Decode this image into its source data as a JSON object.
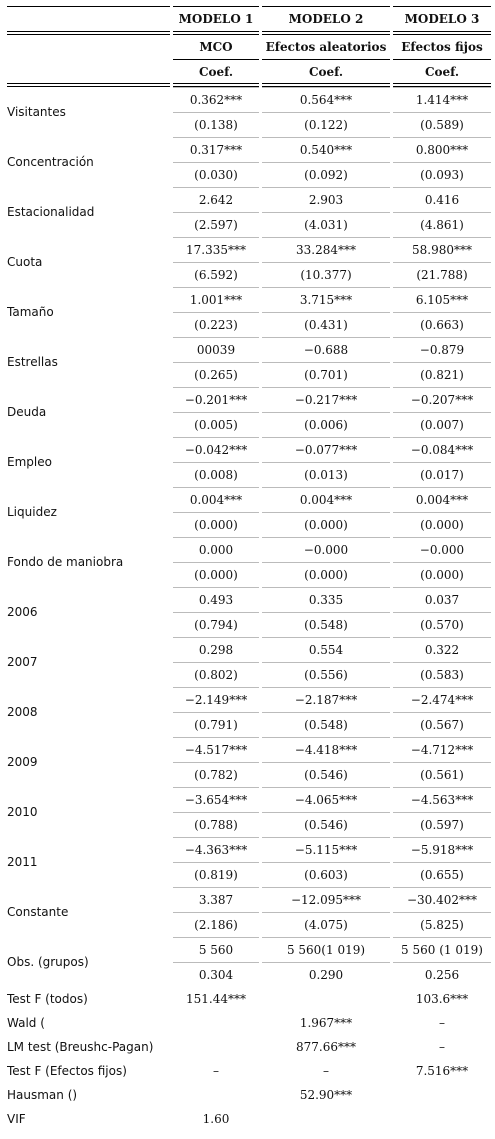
{
  "header": {
    "models": [
      "MODELO 1",
      "MODELO 2",
      "MODELO 3"
    ],
    "methods": [
      "MCO",
      "Efectos aleatorios",
      "Efectos fijos"
    ],
    "coef_labels": [
      "Coef.",
      "Coef.",
      "Coef."
    ]
  },
  "rows": [
    {
      "label": "Visitantes",
      "top": [
        "0.362***",
        "0.564***",
        "1.414***"
      ],
      "bottom": [
        "(0.138)",
        "(0.122)",
        "(0.589)"
      ]
    },
    {
      "label": "Concentración",
      "top": [
        "0.317***",
        "0.540***",
        "0.800***"
      ],
      "bottom": [
        "(0.030)",
        "(0.092)",
        "(0.093)"
      ]
    },
    {
      "label": "Estacionalidad",
      "top": [
        "2.642",
        "2.903",
        "0.416"
      ],
      "bottom": [
        "(2.597)",
        "(4.031)",
        "(4.861)"
      ]
    },
    {
      "label": "Cuota",
      "top": [
        "17.335***",
        "33.284***",
        "58.980***"
      ],
      "bottom": [
        "(6.592)",
        "(10.377)",
        "(21.788)"
      ]
    },
    {
      "label": "Tamaño",
      "top": [
        "1.001***",
        "3.715***",
        "6.105***"
      ],
      "bottom": [
        "(0.223)",
        "(0.431)",
        "(0.663)"
      ]
    },
    {
      "label": "Estrellas",
      "top": [
        "00039",
        "−0.688",
        "−0.879"
      ],
      "bottom": [
        "(0.265)",
        "(0.701)",
        "(0.821)"
      ]
    },
    {
      "label": "Deuda",
      "top": [
        "−0.201***",
        "−0.217***",
        "−0.207***"
      ],
      "bottom": [
        "(0.005)",
        "(0.006)",
        "(0.007)"
      ]
    },
    {
      "label": "Empleo",
      "top": [
        "−0.042***",
        "−0.077***",
        "−0.084***"
      ],
      "bottom": [
        "(0.008)",
        "(0.013)",
        "(0.017)"
      ]
    },
    {
      "label": "Liquidez",
      "top": [
        "0.004***",
        "0.004***",
        "0.004***"
      ],
      "bottom": [
        "(0.000)",
        "(0.000)",
        "(0.000)"
      ]
    },
    {
      "label": "Fondo de maniobra",
      "top": [
        "0.000",
        "−0.000",
        "−0.000"
      ],
      "bottom": [
        "(0.000)",
        "(0.000)",
        "(0.000)"
      ]
    },
    {
      "label": "2006",
      "top": [
        "0.493",
        "0.335",
        "0.037"
      ],
      "bottom": [
        "(0.794)",
        "(0.548)",
        "(0.570)"
      ]
    },
    {
      "label": "2007",
      "top": [
        "0.298",
        "0.554",
        "0.322"
      ],
      "bottom": [
        "(0.802)",
        "(0.556)",
        "(0.583)"
      ]
    },
    {
      "label": "2008",
      "top": [
        "−2.149***",
        "−2.187***",
        "−2.474***"
      ],
      "bottom": [
        "(0.791)",
        "(0.548)",
        "(0.567)"
      ]
    },
    {
      "label": "2009",
      "top": [
        "−4.517***",
        "−4.418***",
        "−4.712***"
      ],
      "bottom": [
        "(0.782)",
        "(0.546)",
        "(0.561)"
      ]
    },
    {
      "label": "2010",
      "top": [
        "−3.654***",
        "−4.065***",
        "−4.563***"
      ],
      "bottom": [
        "(0.788)",
        "(0.546)",
        "(0.597)"
      ]
    },
    {
      "label": "2011",
      "top": [
        "−4.363***",
        "−5.115***",
        "−5.918***"
      ],
      "bottom": [
        "(0.819)",
        "(0.603)",
        "(0.655)"
      ]
    },
    {
      "label": "Constante",
      "top": [
        "3.387",
        "−12.095***",
        "−30.402***"
      ],
      "bottom": [
        "(2.186)",
        "(4.075)",
        "(5.825)"
      ]
    },
    {
      "label": "Obs. (grupos)",
      "top": [
        "5 560",
        "5 560(1 019)",
        "5 560 (1 019)"
      ],
      "bottom": [
        "0.304",
        "0.290",
        "0.256"
      ]
    }
  ],
  "tests": [
    {
      "label": "Test F (todos)",
      "values": [
        "151.44***",
        null,
        "103.6***"
      ]
    },
    {
      "label": "Wald (",
      "values": [
        null,
        "1.967***",
        "–"
      ]
    },
    {
      "label": "LM test (Breushc-Pagan)",
      "values": [
        null,
        "877.66***",
        "–"
      ]
    },
    {
      "label": "Test F (Efectos fijos)",
      "values": [
        "–",
        "–",
        "7.516***"
      ]
    },
    {
      "label": "Hausman ()",
      "values": [
        null,
        "52.90***",
        null
      ]
    },
    {
      "label": "VIF",
      "values": [
        "1.60",
        null,
        null
      ]
    }
  ]
}
